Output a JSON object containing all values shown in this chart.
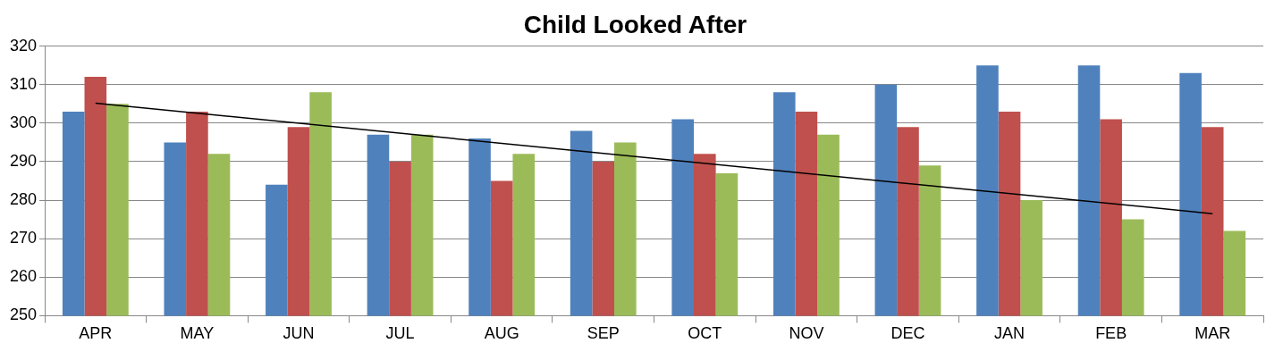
{
  "chart_data": {
    "type": "bar",
    "title": "Child Looked After",
    "categories": [
      "APR",
      "MAY",
      "JUN",
      "JUL",
      "AUG",
      "SEP",
      "OCT",
      "NOV",
      "DEC",
      "JAN",
      "FEB",
      "MAR"
    ],
    "series": [
      {
        "color": "#4f81bd",
        "values": [
          303,
          295,
          284,
          297,
          296,
          298,
          301,
          308,
          310,
          315,
          315,
          313
        ]
      },
      {
        "color": "#c0504d",
        "values": [
          312,
          303,
          299,
          290,
          285,
          290,
          292,
          303,
          299,
          303,
          301,
          299
        ]
      },
      {
        "color": "#9bbb59",
        "values": [
          305,
          292,
          308,
          297,
          292,
          295,
          287,
          297,
          289,
          280,
          275,
          272
        ]
      },
      {
        "type": "line",
        "color": "#000000",
        "x": [
          "APR",
          "MAR"
        ],
        "values": [
          305.2,
          276.5
        ]
      }
    ],
    "ylim": [
      250,
      320
    ],
    "yticks": [
      250,
      260,
      270,
      280,
      290,
      300,
      310,
      320
    ],
    "grid": "y",
    "legend": false
  }
}
